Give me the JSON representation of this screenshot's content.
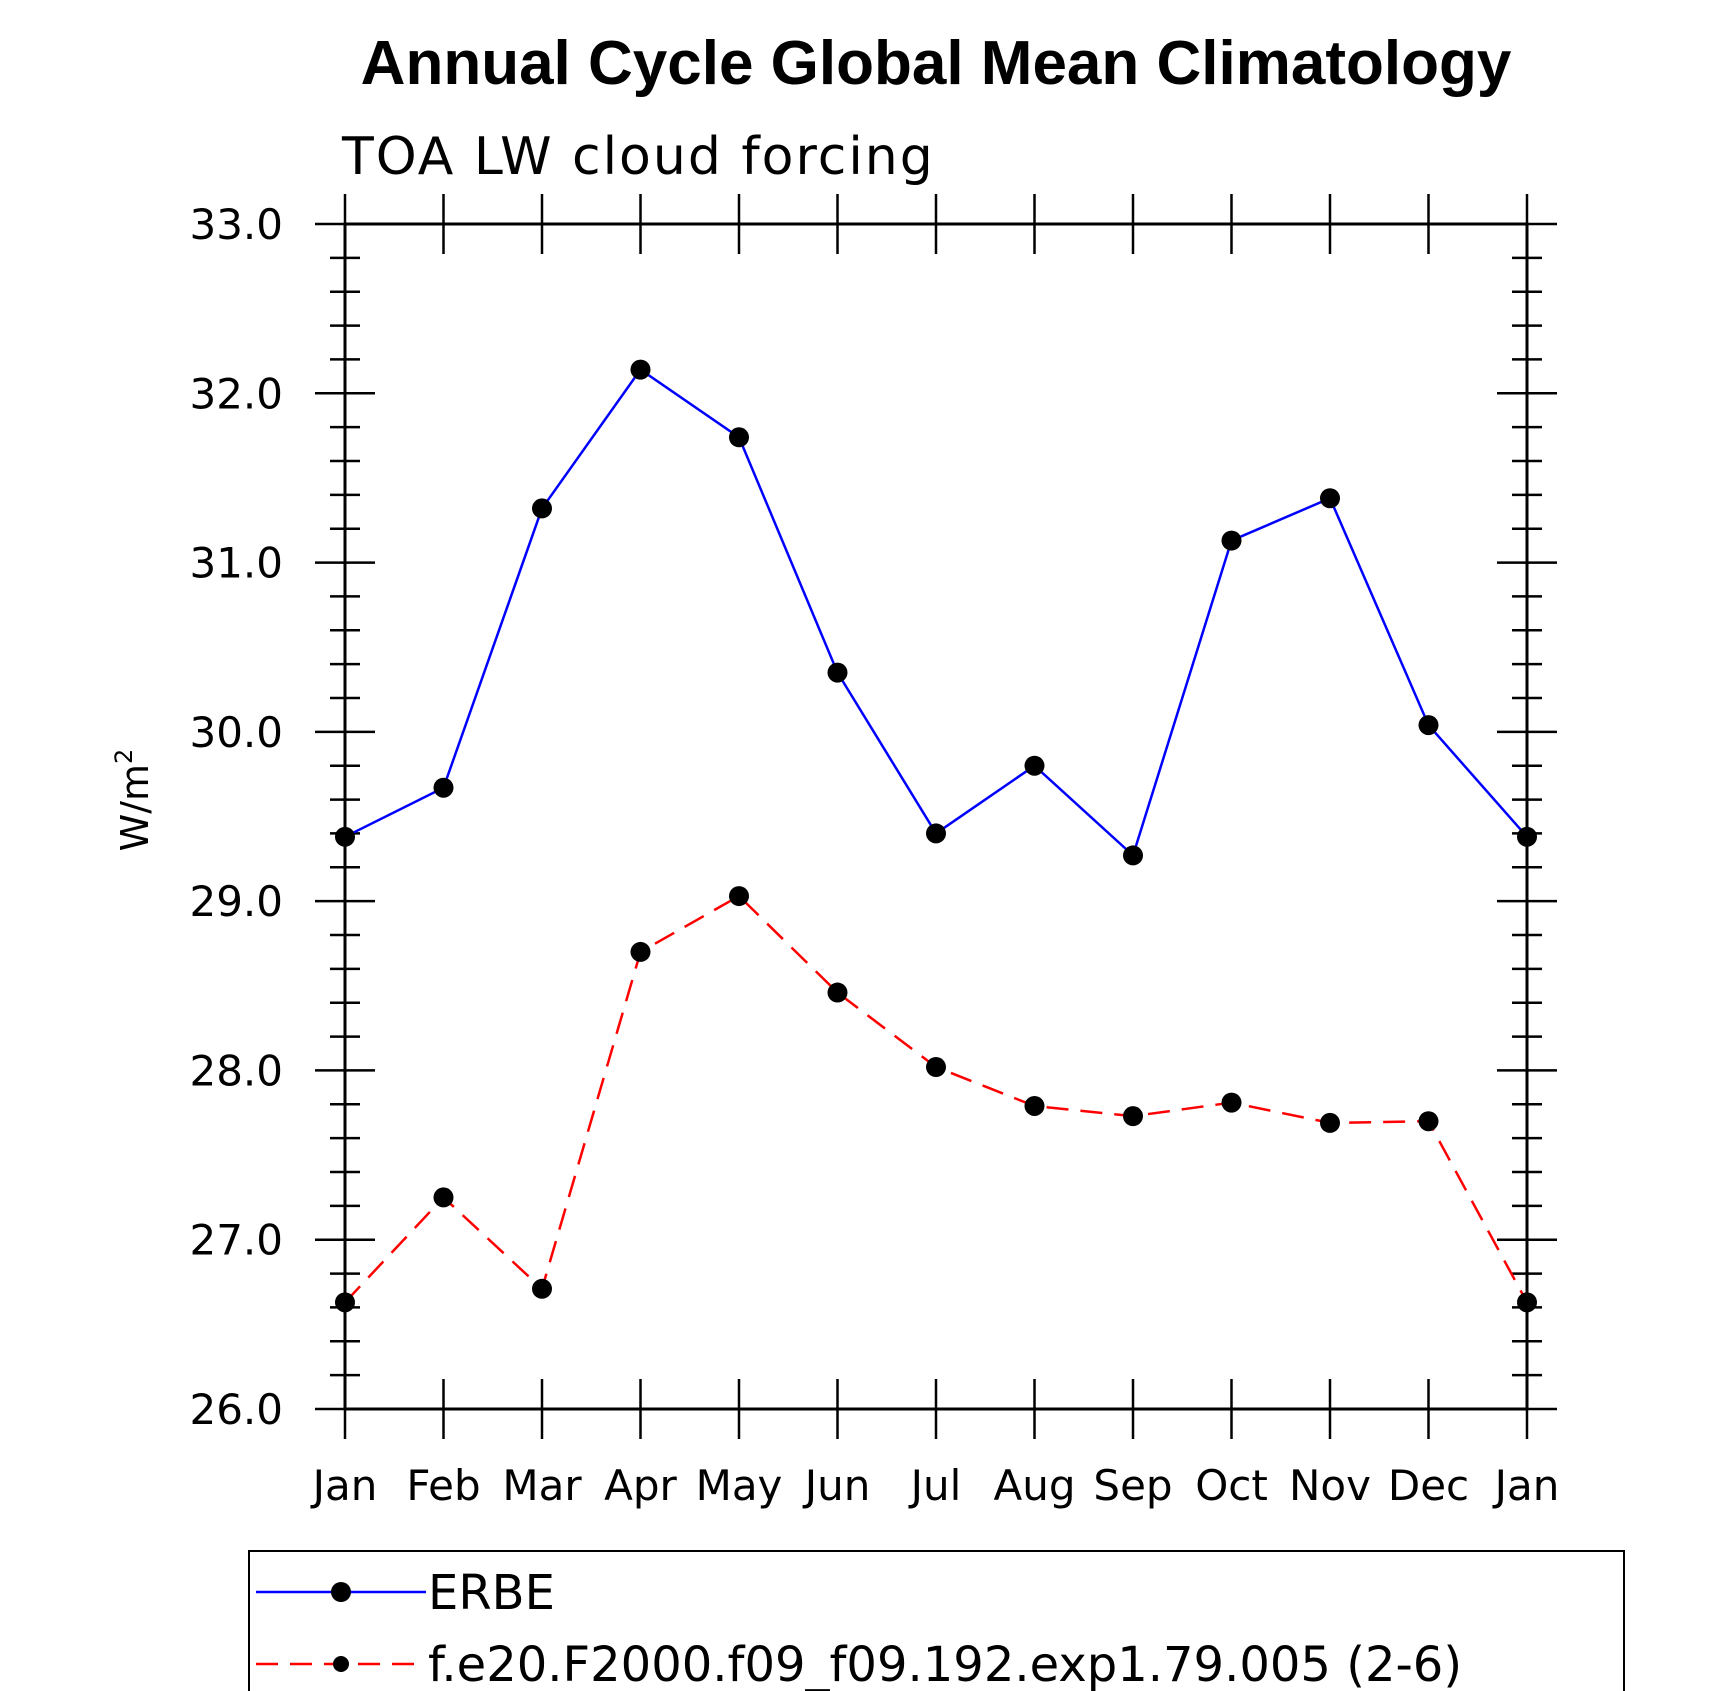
{
  "chart_data": {
    "type": "line",
    "title": "Annual Cycle Global Mean Climatology",
    "subtitle": "TOA LW cloud forcing",
    "ylabel": "W/m",
    "ylabel_sup": "2",
    "ylim": [
      26.0,
      33.0
    ],
    "yticks": [
      "26.0",
      "27.0",
      "28.0",
      "29.0",
      "30.0",
      "31.0",
      "32.0",
      "33.0"
    ],
    "categories": [
      "Jan",
      "Feb",
      "Mar",
      "Apr",
      "May",
      "Jun",
      "Jul",
      "Aug",
      "Sep",
      "Oct",
      "Nov",
      "Dec",
      "Jan"
    ],
    "series": [
      {
        "name": "ERBE",
        "color": "#0000ff",
        "dash": "solid",
        "values": [
          29.38,
          29.67,
          31.32,
          32.14,
          31.74,
          30.35,
          29.4,
          29.8,
          29.27,
          31.13,
          31.38,
          30.04,
          29.38
        ]
      },
      {
        "name": "f.e20.F2000.f09_f09.192.exp1.79.005 (2-6)",
        "color": "#ff0000",
        "dash": "dashed",
        "values": [
          26.63,
          27.25,
          26.71,
          28.7,
          29.03,
          28.46,
          28.02,
          27.79,
          27.73,
          27.81,
          27.69,
          27.7,
          26.63
        ]
      }
    ],
    "marker_color": "#000000",
    "legend_position": "bottom"
  }
}
